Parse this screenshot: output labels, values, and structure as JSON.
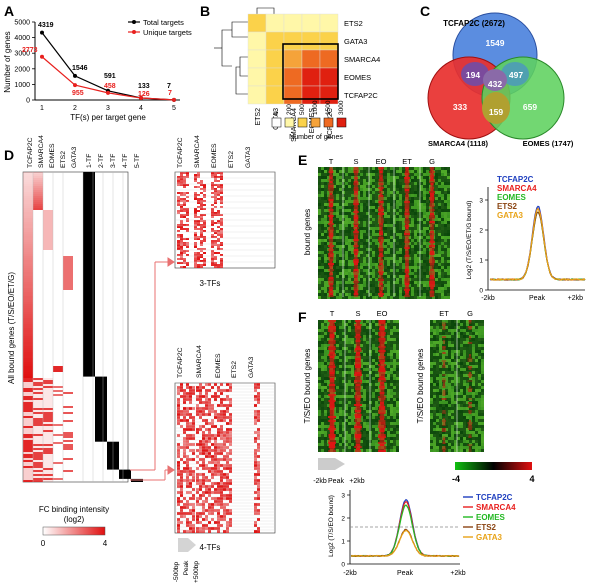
{
  "panels": {
    "A": "A",
    "B": "B",
    "C": "C",
    "D": "D",
    "E": "E",
    "F": "F"
  },
  "colors": {
    "black": "#000000",
    "red": "#e8201e",
    "blue": "#1f3fbf",
    "green": "#22b822",
    "brown": "#8b4513",
    "orange": "#e8a317",
    "venn_blue": "#5b8de0",
    "venn_red": "#e8302e",
    "venn_green": "#5ed15e",
    "purple": "#7b4a9c",
    "heat_low": "#ffffe0",
    "heat_mid": "#f2a13c",
    "heat_high": "#e02010"
  },
  "panelA": {
    "ylabel": "Number of genes",
    "xlabel": "TF(s) per target gene",
    "legend_total": "Total targets",
    "legend_unique": "Unique targets",
    "chart_data": {
      "type": "line",
      "x": [
        1,
        2,
        3,
        4,
        5
      ],
      "ylim": [
        0,
        5000
      ],
      "yticks": [
        "0",
        "1000",
        "2000",
        "3000",
        "4000",
        "5000"
      ],
      "xticks": [
        "1",
        "2",
        "3",
        "4",
        "5"
      ],
      "series": [
        {
          "name": "Total targets",
          "values": [
            4319,
            1546,
            591,
            133,
            7
          ]
        },
        {
          "name": "Unique targets",
          "values": [
            2773,
            955,
            458,
            126,
            7
          ]
        }
      ],
      "total_labels": [
        "4319",
        "1546",
        "591",
        "133",
        "7"
      ],
      "unique_labels": [
        "2773",
        "955",
        "458",
        "126",
        "7"
      ]
    }
  },
  "panelB": {
    "rows": [
      "ETS2",
      "GATA3",
      "SMARCA4",
      "EOMES",
      "TCFAP2C"
    ],
    "cols": [
      "ETS2",
      "GATA3",
      "SMARCA4",
      "EOMES",
      "TCFAP2C"
    ],
    "legend_ticks": [
      "0",
      "200",
      "500",
      "1000",
      "1500",
      "3000"
    ],
    "legend_title": "Number of genes",
    "matrix": [
      [
        2,
        1,
        1,
        1,
        1
      ],
      [
        1,
        2,
        2,
        2,
        2
      ],
      [
        1,
        2,
        3,
        4,
        4
      ],
      [
        1,
        2,
        4,
        5,
        5
      ],
      [
        1,
        2,
        4,
        5,
        5
      ]
    ]
  },
  "panelC": {
    "tcfap2c": "TCFAP2C  (2672)",
    "smarca4": "SMARCA4 (1118)",
    "eomes": "EOMES (1747)",
    "n1549": "1549",
    "n194": "194",
    "n497": "497",
    "n432": "432",
    "n333": "333",
    "n159": "159",
    "n659": "659"
  },
  "panelD": {
    "cols": [
      "TCFAP2C",
      "SMARCA4",
      "EOMES",
      "ETS2",
      "GATA3",
      "1-TF",
      "2-TF",
      "3-TF",
      "4-TF",
      "5-TF"
    ],
    "ylabel": "All bound genes (T/S/EO/ET/G)",
    "top_cols": [
      "TCFAP2C",
      "SMARCA4",
      "EOMES",
      "ETS2",
      "GATA3"
    ],
    "bottom_cols": [
      "TCFAP2C",
      "SMARCA4",
      "EOMES",
      "ETS2",
      "GATA3"
    ],
    "label_3tf": "3-TFs",
    "label_4tf": "4-TFs",
    "scale_title_1": "FC binding intensity",
    "scale_title_2": "(log2)",
    "scale_min": "0",
    "scale_max": "4",
    "x_neg": "-500bp",
    "x_peak": "Peak",
    "x_pos": "+500bp"
  },
  "panelE": {
    "cols": [
      "T",
      "S",
      "EO",
      "ET",
      "G"
    ],
    "ylabel": "bound genes",
    "legend": [
      "TCFAP2C",
      "SMARCA4",
      "EOMES",
      "ETS2",
      "GATA3"
    ],
    "ylabel_plot": "Log2 (T/S/EO/ET/G bound)",
    "yticks": [
      "0",
      "1",
      "2",
      "3"
    ],
    "x_neg": "-2kb",
    "x_peak": "Peak",
    "x_pos": "+2kb"
  },
  "panelF": {
    "cols_left": [
      "T",
      "S",
      "EO"
    ],
    "cols_right": [
      "ET",
      "G"
    ],
    "ylabel": "T/S/EO bound genes",
    "ylabel_right": "T/S/EO bound genes",
    "x_neg": "-2kb",
    "x_peak": "Peak",
    "x_pos": "+2kb",
    "scale_min": "-4",
    "scale_max": "4",
    "legend": [
      "TCFAP2C",
      "SMARCA4",
      "EOMES",
      "ETS2",
      "GATA3"
    ],
    "ylabel_plot": "Log2 (T/S/EO bound)",
    "yticks": [
      "0",
      "1",
      "2",
      "3"
    ],
    "px_neg": "-2kb",
    "px_peak": "Peak",
    "px_pos": "+2kb"
  }
}
